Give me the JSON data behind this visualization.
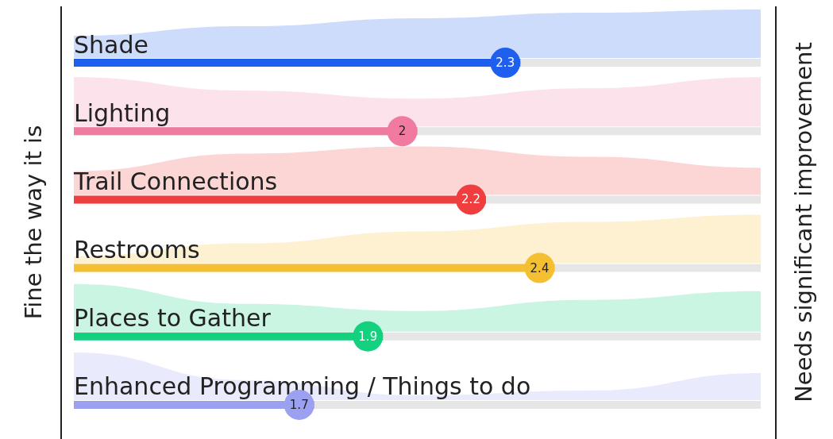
{
  "chart_data": {
    "type": "bar",
    "orientation": "horizontal",
    "categories": [
      "Shade",
      "Lighting",
      "Trail Connections",
      "Restrooms",
      "Places to Gather",
      "Enhanced Programming / Things to do"
    ],
    "values": [
      2.3,
      2,
      2.2,
      2.4,
      1.9,
      1.7
    ],
    "colors": [
      "#1f5ff0",
      "#f07aa0",
      "#f03e3e",
      "#f5bf32",
      "#13d17f",
      "#9ca0f0"
    ],
    "xlim": [
      1,
      3
    ],
    "tick_labels": "y",
    "data_labels": true,
    "grid": false,
    "annotations": [
      "Fine the way it is",
      "Needs significant improvement"
    ]
  }
}
